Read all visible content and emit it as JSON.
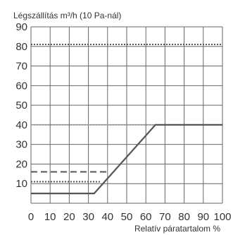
{
  "chart_data": {
    "type": "line",
    "title": "",
    "ylabel": "Légszállítás m³/h (10 Pa-nál)",
    "xlabel": "Relatív páratartalom %",
    "xlim": [
      0,
      100
    ],
    "ylim": [
      0,
      90
    ],
    "x_ticks": [
      "0",
      "10",
      "20",
      "30",
      "40",
      "50",
      "60",
      "70",
      "80",
      "90",
      "100"
    ],
    "y_ticks": [
      "10",
      "20",
      "30",
      "40",
      "50",
      "60",
      "70",
      "80",
      "90"
    ],
    "grid": true,
    "series": [
      {
        "style": "solid",
        "color": "#555555",
        "x": [
          0,
          33,
          65,
          100
        ],
        "y": [
          5,
          5,
          40,
          40
        ]
      }
    ],
    "reference_lines": [
      {
        "style": "dotted",
        "color": "#555555",
        "y": 81,
        "x": [
          0,
          100
        ]
      },
      {
        "style": "dotted",
        "color": "#999999",
        "y": 40,
        "x": [
          0,
          65
        ]
      },
      {
        "style": "dashed",
        "color": "#555555",
        "y": 16,
        "x": [
          0,
          40
        ]
      },
      {
        "style": "dotted",
        "color": "#555555",
        "y": 11,
        "x": [
          0,
          36
        ]
      }
    ]
  }
}
